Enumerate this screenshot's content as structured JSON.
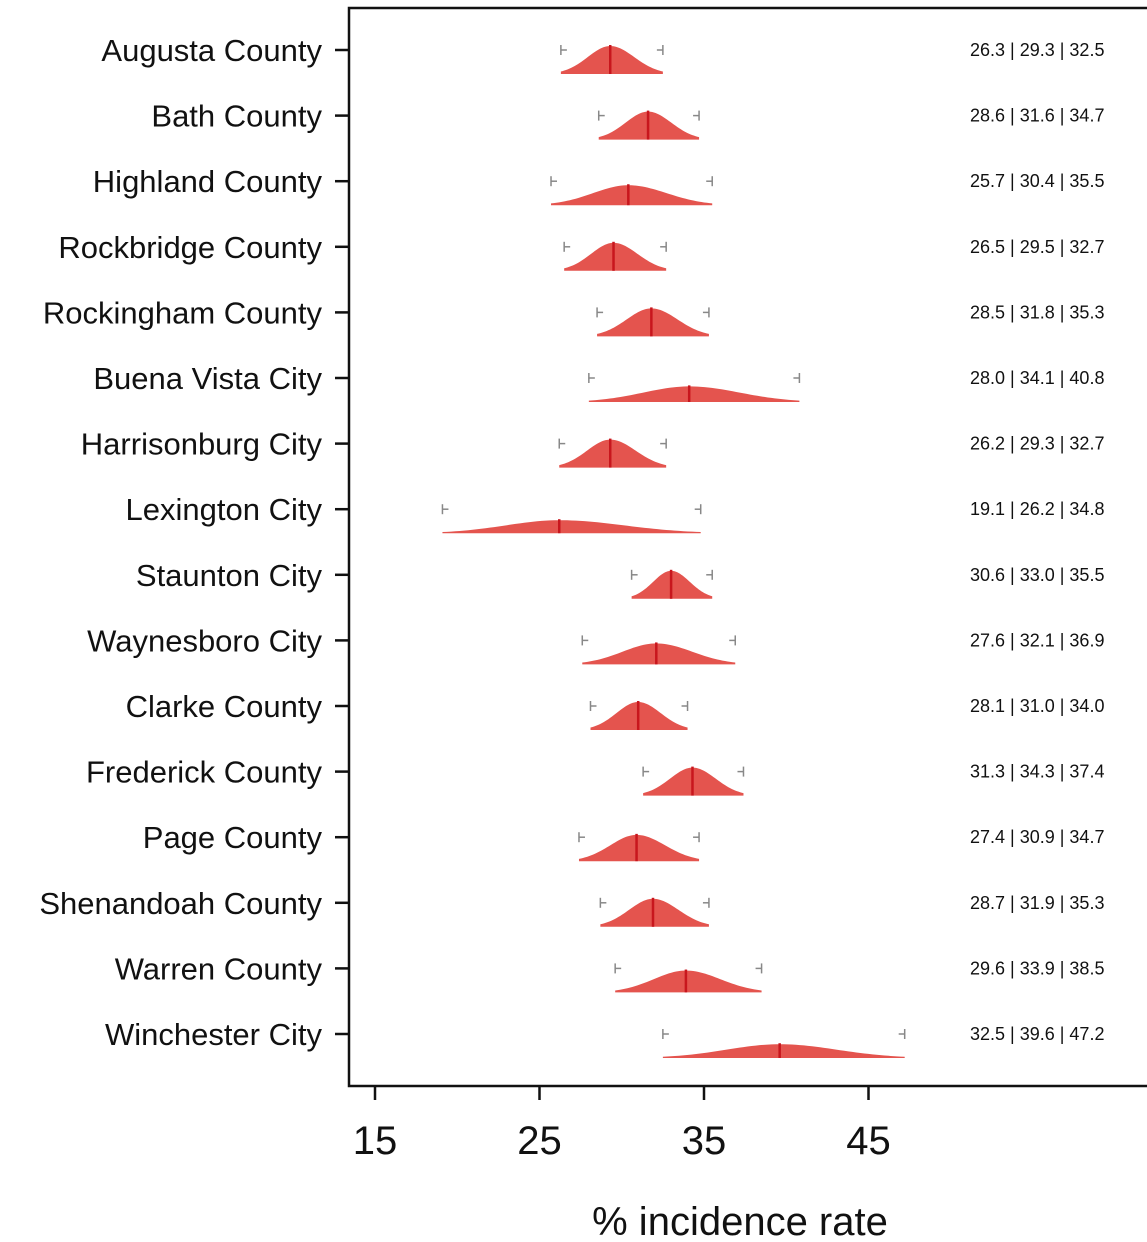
{
  "chart_data": {
    "type": "density-interval",
    "xlabel": "% incidence rate",
    "xticks": [
      15,
      25,
      35,
      45
    ],
    "xlim": [
      13.5,
      59.5
    ],
    "fill_color": "#e4544e",
    "median_color": "#c8161d",
    "whisker_color": "#888888",
    "rows": [
      {
        "name": "Augusta County",
        "low": 26.3,
        "median": 29.3,
        "high": 32.5,
        "label": "26.3 | 29.3 | 32.5"
      },
      {
        "name": "Bath County",
        "low": 28.6,
        "median": 31.6,
        "high": 34.7,
        "label": "28.6 | 31.6 | 34.7"
      },
      {
        "name": "Highland County",
        "low": 25.7,
        "median": 30.4,
        "high": 35.5,
        "label": "25.7 | 30.4 | 35.5"
      },
      {
        "name": "Rockbridge County",
        "low": 26.5,
        "median": 29.5,
        "high": 32.7,
        "label": "26.5 | 29.5 | 32.7"
      },
      {
        "name": "Rockingham County",
        "low": 28.5,
        "median": 31.8,
        "high": 35.3,
        "label": "28.5 | 31.8 | 35.3"
      },
      {
        "name": "Buena Vista City",
        "low": 28.0,
        "median": 34.1,
        "high": 40.8,
        "label": "28.0 | 34.1 | 40.8"
      },
      {
        "name": "Harrisonburg City",
        "low": 26.2,
        "median": 29.3,
        "high": 32.7,
        "label": "26.2 | 29.3 | 32.7"
      },
      {
        "name": "Lexington City",
        "low": 19.1,
        "median": 26.2,
        "high": 34.8,
        "label": "19.1 | 26.2 | 34.8"
      },
      {
        "name": "Staunton City",
        "low": 30.6,
        "median": 33.0,
        "high": 35.5,
        "label": "30.6 | 33.0 | 35.5"
      },
      {
        "name": "Waynesboro City",
        "low": 27.6,
        "median": 32.1,
        "high": 36.9,
        "label": "27.6 | 32.1 | 36.9"
      },
      {
        "name": "Clarke County",
        "low": 28.1,
        "median": 31.0,
        "high": 34.0,
        "label": "28.1 | 31.0 | 34.0"
      },
      {
        "name": "Frederick County",
        "low": 31.3,
        "median": 34.3,
        "high": 37.4,
        "label": "31.3 | 34.3 | 37.4"
      },
      {
        "name": "Page County",
        "low": 27.4,
        "median": 30.9,
        "high": 34.7,
        "label": "27.4 | 30.9 | 34.7"
      },
      {
        "name": "Shenandoah County",
        "low": 28.7,
        "median": 31.9,
        "high": 35.3,
        "label": "28.7 | 31.9 | 35.3"
      },
      {
        "name": "Warren County",
        "low": 29.6,
        "median": 33.9,
        "high": 38.5,
        "label": "29.6 | 33.9 | 38.5"
      },
      {
        "name": "Winchester City",
        "low": 32.5,
        "median": 39.6,
        "high": 47.2,
        "label": "32.5 | 39.6 | 47.2"
      }
    ]
  }
}
